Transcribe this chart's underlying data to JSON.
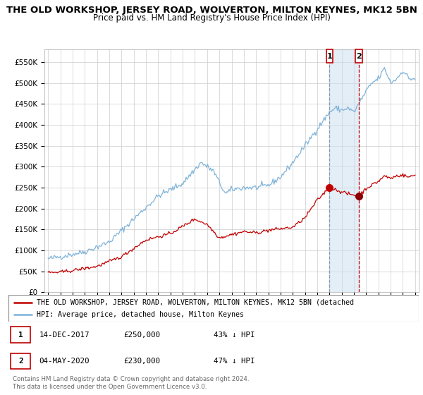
{
  "title": "THE OLD WORKSHOP, JERSEY ROAD, WOLVERTON, MILTON KEYNES, MK12 5BN",
  "subtitle": "Price paid vs. HM Land Registry's House Price Index (HPI)",
  "ylabel_ticks": [
    "£0",
    "£50K",
    "£100K",
    "£150K",
    "£200K",
    "£250K",
    "£300K",
    "£350K",
    "£400K",
    "£450K",
    "£500K",
    "£550K"
  ],
  "ytick_values": [
    0,
    50000,
    100000,
    150000,
    200000,
    250000,
    300000,
    350000,
    400000,
    450000,
    500000,
    550000
  ],
  "ylim": [
    0,
    580000
  ],
  "hpi_color": "#7fb3d9",
  "hpi_fill_color": "#c8dff0",
  "price_color": "#c00000",
  "ann1_color": "#8899aa",
  "ann1_x": 2018.0,
  "ann1_y": 250000,
  "ann2_x": 2020.4,
  "ann2_y": 230000,
  "legend_line1": "THE OLD WORKSHOP, JERSEY ROAD, WOLVERTON, MILTON KEYNES, MK12 5BN (detached",
  "legend_line2": "HPI: Average price, detached house, Milton Keynes",
  "table_row1": [
    "1",
    "14-DEC-2017",
    "£250,000",
    "43% ↓ HPI"
  ],
  "table_row2": [
    "2",
    "04-MAY-2020",
    "£230,000",
    "47% ↓ HPI"
  ],
  "footer": "Contains HM Land Registry data © Crown copyright and database right 2024.\nThis data is licensed under the Open Government Licence v3.0.",
  "bg_color": "#ffffff",
  "grid_color": "#cccccc",
  "title_fontsize": 9.5,
  "subtitle_fontsize": 8.5,
  "tick_fontsize": 7.5,
  "xlim_left": 1994.7,
  "xlim_right": 2025.3
}
